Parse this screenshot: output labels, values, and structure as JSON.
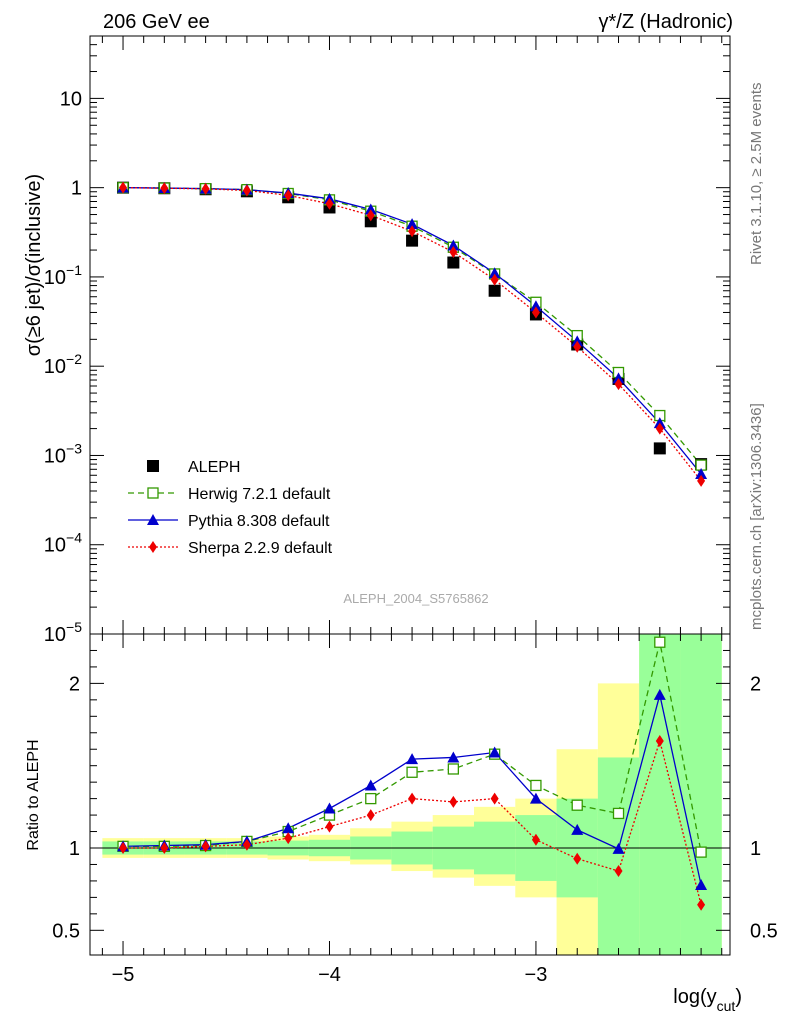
{
  "chart_data": {
    "type": "line",
    "title_left": "206 GeV ee",
    "title_right": "γ*/Z (Hadronic)",
    "ylabel": "σ(≥6 jet)/σ(inclusive)",
    "ratio_ylabel": "Ratio to ALEPH",
    "xlabel": "log(y_cut)",
    "side_text": [
      "Rivet 3.1.10, ≥ 2.5M events",
      "mcplots.cern.ch [arXiv:1306.3436]"
    ],
    "watermark": "ALEPH_2004_S5765862",
    "xlim": [
      -5.16,
      -2.06
    ],
    "ylim": [
      1e-05,
      50
    ],
    "y_scale": "log",
    "ratio_ylim": [
      0.35,
      2.3
    ],
    "x_ticks": [
      "−5",
      "−4",
      "−3"
    ],
    "y_ticks": [
      "10^-5",
      "10^-4",
      "10^-3",
      "10^-2",
      "10^-1",
      "1",
      "10"
    ],
    "ratio_ticks": [
      "0.5",
      "1",
      "2"
    ],
    "x": [
      -5.0,
      -4.8,
      -4.6,
      -4.4,
      -4.2,
      -4.0,
      -3.8,
      -3.6,
      -3.4,
      -3.2,
      -3.0,
      -2.8,
      -2.6,
      -2.4,
      -2.2
    ],
    "data": {
      "name": "ALEPH",
      "values": [
        1.0,
        0.985,
        0.96,
        0.91,
        0.78,
        0.6,
        0.42,
        0.255,
        0.145,
        0.07,
        0.038,
        0.0175,
        0.0072,
        0.0012,
        0.0008
      ]
    },
    "series": [
      {
        "name": "Herwig 7.2.1 default",
        "color": "#339900",
        "values": [
          1.0,
          0.99,
          0.975,
          0.95,
          0.86,
          0.73,
          0.545,
          0.37,
          0.215,
          0.108,
          0.052,
          0.022,
          0.0085,
          0.0028,
          0.00078
        ],
        "ratio": [
          1.01,
          1.01,
          1.015,
          1.04,
          1.1,
          1.2,
          1.3,
          1.46,
          1.48,
          1.57,
          1.38,
          1.26,
          1.21,
          2.25,
          0.975
        ]
      },
      {
        "name": "Pythia 8.308 default",
        "color": "#0000cc",
        "values": [
          1.0,
          0.99,
          0.975,
          0.95,
          0.87,
          0.75,
          0.57,
          0.39,
          0.225,
          0.11,
          0.047,
          0.019,
          0.0073,
          0.0023,
          0.00062
        ],
        "ratio": [
          1.01,
          1.015,
          1.02,
          1.04,
          1.12,
          1.24,
          1.38,
          1.54,
          1.55,
          1.58,
          1.3,
          1.11,
          0.995,
          1.93,
          0.775
        ]
      },
      {
        "name": "Sherpa 2.2.9 default",
        "color": "#ee0000",
        "values": [
          1.0,
          0.985,
          0.97,
          0.93,
          0.82,
          0.66,
          0.49,
          0.325,
          0.19,
          0.093,
          0.04,
          0.0165,
          0.0063,
          0.002,
          0.00052
        ],
        "ratio": [
          1.0,
          1.0,
          1.01,
          1.02,
          1.06,
          1.13,
          1.2,
          1.3,
          1.28,
          1.3,
          1.05,
          0.935,
          0.86,
          1.65,
          0.655
        ]
      }
    ],
    "uncertainty_bands": {
      "yellow": [
        [
          0.94,
          1.06
        ],
        [
          0.94,
          1.06
        ],
        [
          0.94,
          1.06
        ],
        [
          0.94,
          1.06
        ],
        [
          0.93,
          1.07
        ],
        [
          0.92,
          1.08
        ],
        [
          0.9,
          1.12
        ],
        [
          0.86,
          1.16
        ],
        [
          0.82,
          1.2
        ],
        [
          0.77,
          1.25
        ],
        [
          0.7,
          1.3
        ],
        [
          0.35,
          1.6
        ],
        [
          0.45,
          2.0
        ],
        [
          0.35,
          2.3
        ],
        [
          0.35,
          2.3
        ]
      ],
      "green": [
        [
          0.96,
          1.04
        ],
        [
          0.96,
          1.04
        ],
        [
          0.96,
          1.04
        ],
        [
          0.96,
          1.04
        ],
        [
          0.955,
          1.045
        ],
        [
          0.95,
          1.05
        ],
        [
          0.93,
          1.07
        ],
        [
          0.9,
          1.1
        ],
        [
          0.87,
          1.13
        ],
        [
          0.84,
          1.16
        ],
        [
          0.8,
          1.2
        ],
        [
          0.7,
          1.3
        ],
        [
          0.35,
          1.55
        ],
        [
          0.35,
          2.3
        ],
        [
          0.35,
          2.3
        ]
      ]
    }
  }
}
